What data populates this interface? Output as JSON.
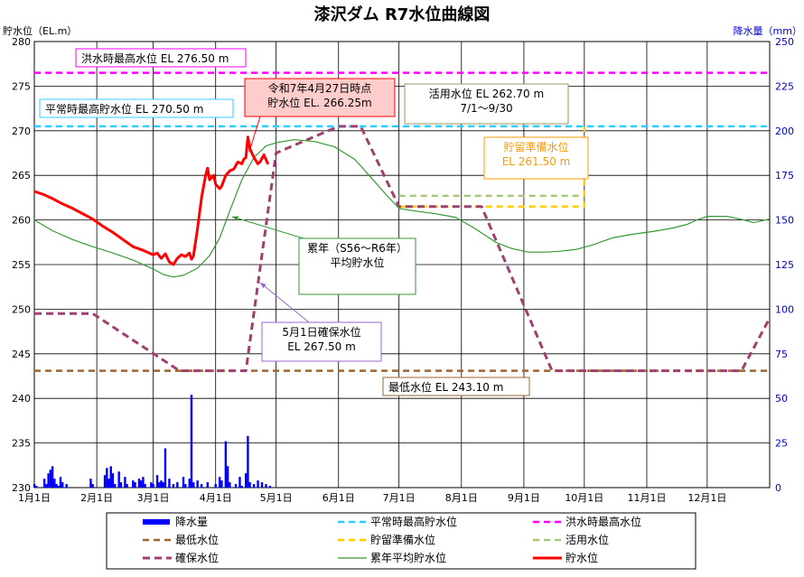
{
  "chart_data": {
    "type": "line",
    "title": "漆沢ダム R7水位曲線図",
    "left_axis": {
      "label": "貯水位（EL.m）",
      "range": [
        230,
        280
      ],
      "ticks": [
        230,
        235,
        240,
        245,
        250,
        255,
        260,
        265,
        270,
        275,
        280
      ]
    },
    "right_axis": {
      "label": "降水量（mm）",
      "range": [
        0,
        250
      ],
      "ticks": [
        0,
        25,
        50,
        75,
        100,
        125,
        150,
        175,
        200,
        225,
        250
      ],
      "color": "#0000cc"
    },
    "x_axis": {
      "range": [
        1,
        366
      ],
      "tick_labels": [
        "1月1日",
        "2月1日",
        "3月1日",
        "4月1日",
        "5月1日",
        "6月1日",
        "7月1日",
        "8月1日",
        "9月1日",
        "10月1日",
        "11月1日",
        "12月1日"
      ],
      "tick_days": [
        1,
        32,
        60,
        91,
        121,
        152,
        182,
        213,
        244,
        274,
        305,
        335
      ]
    },
    "grid": true,
    "series": [
      {
        "name": "降水量",
        "kind": "bar",
        "axis": "right",
        "color": "#0000ff",
        "points": [
          [
            1,
            2
          ],
          [
            2,
            1
          ],
          [
            6,
            5
          ],
          [
            7,
            2
          ],
          [
            8,
            8
          ],
          [
            9,
            10
          ],
          [
            10,
            12
          ],
          [
            11,
            5
          ],
          [
            12,
            2
          ],
          [
            13,
            1
          ],
          [
            14,
            6
          ],
          [
            15,
            3
          ],
          [
            17,
            2
          ],
          [
            29,
            5
          ],
          [
            30,
            2
          ],
          [
            36,
            7
          ],
          [
            37,
            11
          ],
          [
            38,
            5
          ],
          [
            39,
            12
          ],
          [
            40,
            8
          ],
          [
            41,
            2
          ],
          [
            43,
            9
          ],
          [
            44,
            3
          ],
          [
            46,
            6
          ],
          [
            47,
            2
          ],
          [
            50,
            4
          ],
          [
            51,
            3
          ],
          [
            53,
            5
          ],
          [
            54,
            4
          ],
          [
            55,
            6
          ],
          [
            56,
            2
          ],
          [
            59,
            3
          ],
          [
            60,
            2
          ],
          [
            62,
            7
          ],
          [
            63,
            3
          ],
          [
            64,
            4
          ],
          [
            65,
            3
          ],
          [
            66,
            22
          ],
          [
            68,
            5
          ],
          [
            70,
            2
          ],
          [
            72,
            3
          ],
          [
            75,
            6
          ],
          [
            76,
            2
          ],
          [
            78,
            5
          ],
          [
            79,
            52
          ],
          [
            80,
            3
          ],
          [
            82,
            4
          ],
          [
            84,
            2
          ],
          [
            87,
            3
          ],
          [
            91,
            2
          ],
          [
            93,
            6
          ],
          [
            94,
            4
          ],
          [
            96,
            26
          ],
          [
            97,
            12
          ],
          [
            98,
            3
          ],
          [
            101,
            2
          ],
          [
            103,
            6
          ],
          [
            104,
            1
          ],
          [
            106,
            8
          ],
          [
            107,
            29
          ],
          [
            108,
            3
          ],
          [
            110,
            2
          ],
          [
            112,
            4
          ],
          [
            114,
            3
          ],
          [
            116,
            2
          ],
          [
            118,
            1
          ]
        ]
      },
      {
        "name": "平常時最高貯水位",
        "kind": "dash",
        "axis": "left",
        "color": "#33ccff",
        "points": [
          [
            1,
            270.5
          ],
          [
            366,
            270.5
          ]
        ]
      },
      {
        "name": "洪水時最高水位",
        "kind": "dash",
        "axis": "left",
        "color": "#ff00ff",
        "points": [
          [
            1,
            276.5
          ],
          [
            366,
            276.5
          ]
        ]
      },
      {
        "name": "最低水位",
        "kind": "dash",
        "axis": "left",
        "color": "#996633",
        "points": [
          [
            1,
            243.1
          ],
          [
            366,
            243.1
          ]
        ]
      },
      {
        "name": "貯留準備水位",
        "kind": "dash",
        "axis": "left",
        "color": "#ffcc00",
        "points": [
          [
            182,
            261.5
          ],
          [
            274,
            261.5
          ],
          [
            274,
            270.5
          ]
        ]
      },
      {
        "name": "活用水位",
        "kind": "dash",
        "axis": "left",
        "color": "#aac87a",
        "points": [
          [
            182,
            262.7
          ],
          [
            274,
            262.7
          ]
        ]
      },
      {
        "name": "確保水位",
        "kind": "dash",
        "axis": "left",
        "color": "#a04070",
        "points": [
          [
            1,
            249.5
          ],
          [
            30,
            249.5
          ],
          [
            73,
            243.1
          ],
          [
            106,
            243.1
          ],
          [
            121,
            267.5
          ],
          [
            152,
            270.5
          ],
          [
            163,
            270.5
          ],
          [
            182,
            261.5
          ],
          [
            223,
            261.5
          ],
          [
            258,
            243.1
          ],
          [
            352,
            243.1
          ],
          [
            366,
            249.0
          ]
        ]
      },
      {
        "name": "累年平均貯水位",
        "kind": "line",
        "axis": "left",
        "color": "#339933",
        "points": [
          [
            1,
            260.0
          ],
          [
            10,
            258.8
          ],
          [
            20,
            257.8
          ],
          [
            30,
            257.0
          ],
          [
            40,
            256.3
          ],
          [
            50,
            255.5
          ],
          [
            60,
            254.5
          ],
          [
            65,
            253.9
          ],
          [
            70,
            253.6
          ],
          [
            75,
            253.8
          ],
          [
            82,
            254.6
          ],
          [
            88,
            256.0
          ],
          [
            93,
            258.0
          ],
          [
            98,
            261.0
          ],
          [
            104,
            264.5
          ],
          [
            110,
            267.0
          ],
          [
            116,
            268.3
          ],
          [
            122,
            268.7
          ],
          [
            130,
            269.0
          ],
          [
            140,
            268.8
          ],
          [
            150,
            268.2
          ],
          [
            160,
            266.8
          ],
          [
            168,
            264.8
          ],
          [
            175,
            263.0
          ],
          [
            182,
            261.3
          ],
          [
            190,
            261.0
          ],
          [
            200,
            260.7
          ],
          [
            210,
            260.3
          ],
          [
            220,
            259.0
          ],
          [
            230,
            257.5
          ],
          [
            238,
            256.8
          ],
          [
            246,
            256.4
          ],
          [
            255,
            256.4
          ],
          [
            262,
            256.5
          ],
          [
            270,
            256.7
          ],
          [
            278,
            257.2
          ],
          [
            288,
            258.0
          ],
          [
            298,
            258.4
          ],
          [
            308,
            258.7
          ],
          [
            318,
            259.1
          ],
          [
            325,
            259.5
          ],
          [
            330,
            260.0
          ],
          [
            335,
            260.4
          ],
          [
            345,
            260.4
          ],
          [
            353,
            260.0
          ],
          [
            358,
            259.7
          ],
          [
            366,
            260.1
          ]
        ]
      },
      {
        "name": "貯水位",
        "kind": "line",
        "axis": "left",
        "color": "#ff0000",
        "points": [
          [
            1,
            263.2
          ],
          [
            5,
            262.9
          ],
          [
            10,
            262.4
          ],
          [
            15,
            261.8
          ],
          [
            20,
            261.3
          ],
          [
            25,
            260.7
          ],
          [
            30,
            260.1
          ],
          [
            35,
            259.3
          ],
          [
            40,
            258.6
          ],
          [
            45,
            257.8
          ],
          [
            50,
            257.0
          ],
          [
            55,
            256.6
          ],
          [
            60,
            256.1
          ],
          [
            62,
            256.3
          ],
          [
            64,
            255.7
          ],
          [
            66,
            256.2
          ],
          [
            68,
            255.3
          ],
          [
            70,
            255.0
          ],
          [
            72,
            255.7
          ],
          [
            74,
            256.1
          ],
          [
            76,
            255.9
          ],
          [
            78,
            256.3
          ],
          [
            79,
            255.6
          ],
          [
            80,
            256.0
          ],
          [
            82,
            259.0
          ],
          [
            84,
            262.5
          ],
          [
            86,
            265.0
          ],
          [
            87,
            265.8
          ],
          [
            88,
            264.5
          ],
          [
            90,
            265.0
          ],
          [
            91,
            264.0
          ],
          [
            93,
            263.5
          ],
          [
            94,
            263.8
          ],
          [
            96,
            265.0
          ],
          [
            98,
            265.5
          ],
          [
            100,
            265.7
          ],
          [
            102,
            266.5
          ],
          [
            104,
            266.3
          ],
          [
            105,
            266.8
          ],
          [
            106,
            267.0
          ],
          [
            107,
            269.3
          ],
          [
            108,
            268.0
          ],
          [
            110,
            267.0
          ],
          [
            112,
            266.3
          ],
          [
            113,
            266.5
          ],
          [
            115,
            267.3
          ],
          [
            117,
            266.25
          ]
        ]
      }
    ],
    "annotations": [
      {
        "text": "洪水時最高水位 EL 276.50 m",
        "color": "#ff00ff"
      },
      {
        "text": "平常時最高貯水位 EL 270.50 m",
        "color": "#33ccff"
      },
      {
        "text": "令和7年4月27日時点\n貯水位 EL. 266.25m",
        "color": "#ff0000"
      },
      {
        "text": "活用水位 EL 262.70 m\n7/1～9/30",
        "color": "#999966"
      },
      {
        "text": "貯留準備水位\nEL 261.50 m",
        "color": "#ff9900"
      },
      {
        "text": "累年（S56～R6年）\n平均貯水位",
        "color": "#339933"
      },
      {
        "text": "5月1日確保水位\nEL 267.50 m",
        "color": "#9966cc"
      },
      {
        "text": "最低水位 EL 243.10 m",
        "color": "#996633"
      }
    ],
    "legend": {
      "placement": "bottom",
      "items": [
        "降水量",
        "平常時最高貯水位",
        "洪水時最高水位",
        "最低水位",
        "貯留準備水位",
        "活用水位",
        "確保水位",
        "累年平均貯水位",
        "貯水位"
      ]
    }
  }
}
